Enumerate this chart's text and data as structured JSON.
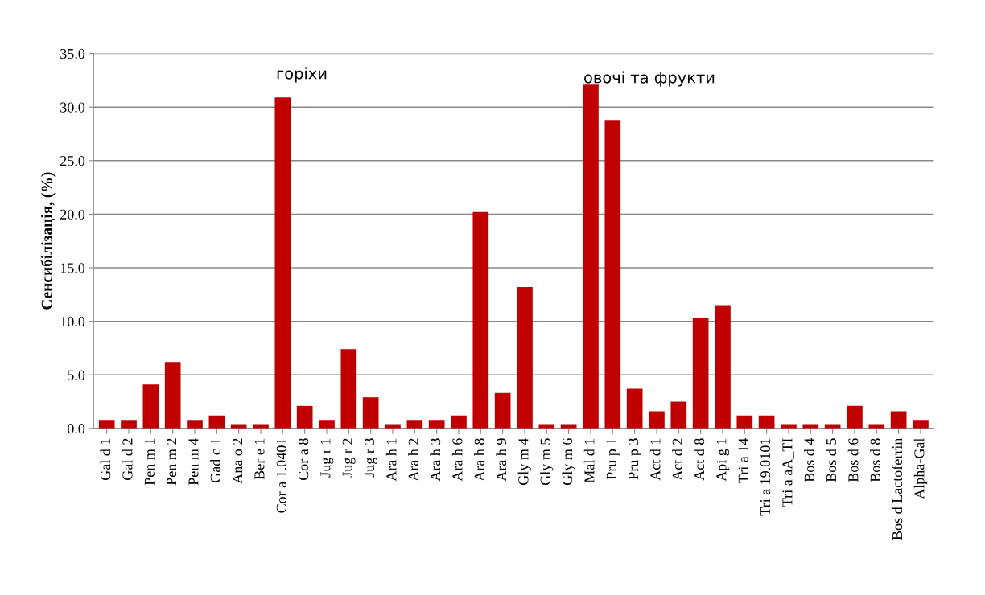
{
  "chart_data": {
    "type": "bar",
    "ylabel": "Сенсибілізація, (%)",
    "categories": [
      "Gal d 1",
      "Gal d 2",
      "Pen m 1",
      "Pen m 2",
      "Pen m 4",
      "Gad c 1",
      "Ana o 2",
      "Ber e 1",
      "Cor a 1.0401",
      "Cor a 8",
      "Jug r 1",
      "Jug r 2",
      "Jug r 3",
      "Ara h 1",
      "Ara h 2",
      "Ara h 3",
      "Ara h 6",
      "Ara h 8",
      "Ara h 9",
      "Gly m 4",
      "Gly m 5",
      "Gly m 6",
      "Mal d 1",
      "Pru p 1",
      "Pru p 3",
      "Act d 1",
      "Act d 2",
      "Act d 8",
      "Api g 1",
      "Tri a 14",
      "Tri a 19.0101",
      "Tri a aA_TI",
      "Bos d 4",
      "Bos d 5",
      "Bos d 6",
      "Bos d 8",
      "Bos d Lactoferrin",
      "Alpha-Gal"
    ],
    "values": [
      0.8,
      0.8,
      4.1,
      6.2,
      0.8,
      1.2,
      0.4,
      0.4,
      30.9,
      2.1,
      0.8,
      7.4,
      2.9,
      0.4,
      0.8,
      0.8,
      1.2,
      20.2,
      3.3,
      13.2,
      0.4,
      0.4,
      32.1,
      28.8,
      3.7,
      1.6,
      2.5,
      10.3,
      11.5,
      1.2,
      1.2,
      0.4,
      0.4,
      0.4,
      2.1,
      0.4,
      1.6,
      0.8
    ],
    "color": "#c00000",
    "ylim": [
      0,
      35
    ],
    "yticks": [
      {
        "value": 0,
        "label": "0.0"
      },
      {
        "value": 5,
        "label": "5.0"
      },
      {
        "value": 10,
        "label": "10.0"
      },
      {
        "value": 15,
        "label": "15.0"
      },
      {
        "value": 20,
        "label": "20.0"
      },
      {
        "value": 25,
        "label": "25.0"
      },
      {
        "value": 30,
        "label": "30.0"
      },
      {
        "value": 35,
        "label": "35.0"
      }
    ],
    "grid": "y",
    "annotations": [
      "горіхи",
      "овочі та фрукти"
    ]
  }
}
